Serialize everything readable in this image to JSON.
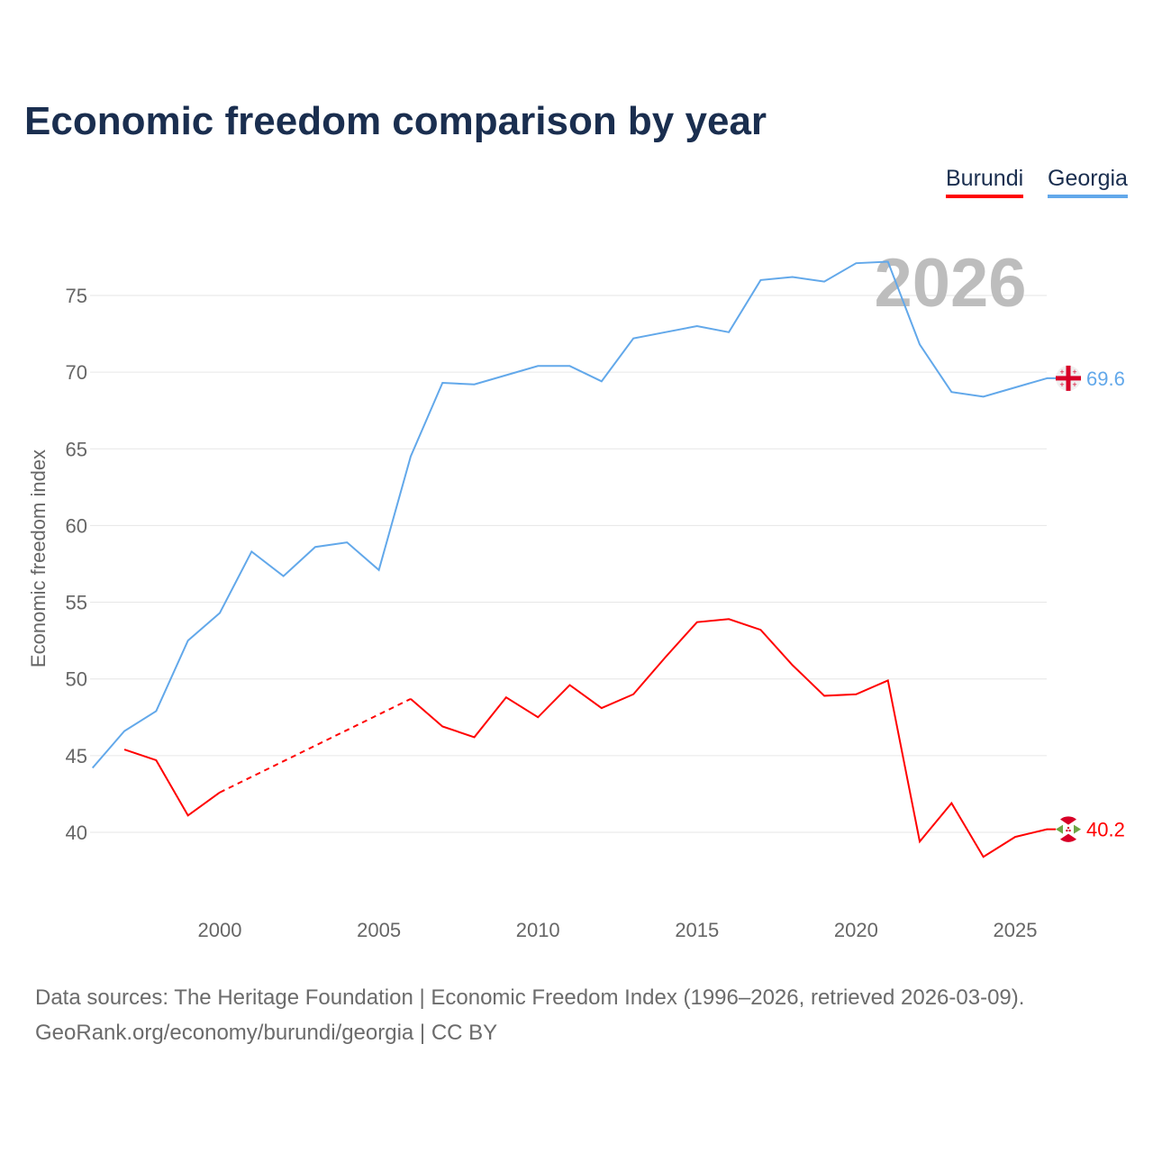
{
  "chart_data": {
    "type": "line",
    "title": "Economic freedom comparison by year",
    "xlabel": "",
    "ylabel": "Economic freedom index",
    "xlim": [
      1996,
      2026
    ],
    "ylim": [
      35,
      78
    ],
    "y_ticks": [
      40,
      45,
      50,
      55,
      60,
      65,
      70,
      75
    ],
    "x_ticks": [
      2000,
      2005,
      2010,
      2015,
      2020,
      2025
    ],
    "grid": true,
    "legend_position": "top-right",
    "year_annotation": "2026",
    "x": [
      1996,
      1997,
      1998,
      1999,
      2000,
      2001,
      2002,
      2003,
      2004,
      2005,
      2006,
      2007,
      2008,
      2009,
      2010,
      2011,
      2012,
      2013,
      2014,
      2015,
      2016,
      2017,
      2018,
      2019,
      2020,
      2021,
      2022,
      2023,
      2024,
      2025,
      2026
    ],
    "series": [
      {
        "name": "Burundi",
        "color": "#ff0000",
        "end_label": "40.2",
        "flag": "burundi-flag",
        "values": [
          null,
          45.4,
          44.7,
          41.1,
          42.6,
          null,
          null,
          null,
          null,
          null,
          48.7,
          46.9,
          46.2,
          48.8,
          47.5,
          49.6,
          48.1,
          49.0,
          51.4,
          53.7,
          53.9,
          53.2,
          50.9,
          48.9,
          49.0,
          49.9,
          39.4,
          41.9,
          38.4,
          39.7,
          40.2
        ]
      },
      {
        "name": "Georgia",
        "color": "#62a8ea",
        "end_label": "69.6",
        "flag": "georgia-flag",
        "values": [
          44.2,
          46.6,
          47.9,
          52.5,
          54.3,
          58.3,
          56.7,
          58.6,
          58.9,
          57.1,
          64.5,
          69.3,
          69.2,
          69.8,
          70.4,
          70.4,
          69.4,
          72.2,
          72.6,
          73.0,
          72.6,
          76.0,
          76.2,
          75.9,
          77.1,
          77.2,
          71.8,
          68.7,
          68.4,
          69.0,
          69.6
        ]
      }
    ]
  },
  "footer": {
    "line1": "Data sources: The Heritage Foundation | Economic Freedom Index (1996–2026, retrieved 2026-03-09).",
    "line2": "GeoRank.org/economy/burundi/georgia | CC BY"
  }
}
